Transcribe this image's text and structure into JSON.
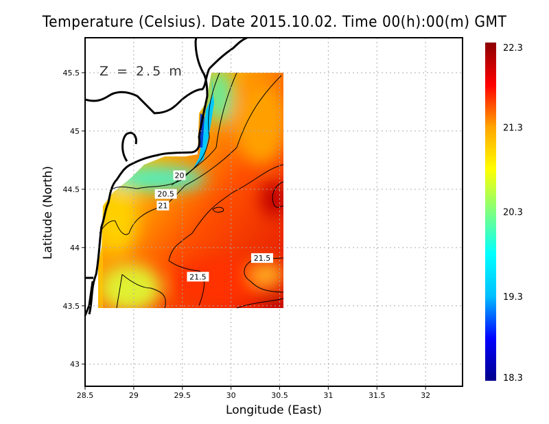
{
  "chart_data": {
    "type": "heatmap",
    "title": "Temperature (Celsius). Date 2015.10.02. Time 00(h):00(m) GMT",
    "xlabel": "Longitude (East)",
    "ylabel": "Latitude (North)",
    "annotation": "Z = 2.5 m",
    "xlim": [
      28.5,
      32.38
    ],
    "ylim": [
      42.81,
      45.8
    ],
    "xticks": [
      "28.5",
      "29",
      "29.5",
      "30",
      "30.5",
      "31",
      "31.5",
      "32"
    ],
    "xtick_values": [
      28.5,
      29,
      29.5,
      30,
      30.5,
      31,
      31.5,
      32
    ],
    "yticks": [
      "43",
      "43.5",
      "44",
      "44.5",
      "45",
      "45.5"
    ],
    "ytick_values": [
      43,
      43.5,
      44,
      44.5,
      45,
      45.5
    ],
    "grid": true,
    "data_extent": {
      "lon": [
        28.63,
        30.55
      ],
      "lat": [
        43.48,
        45.5
      ]
    },
    "colorbar": {
      "min": 18.3,
      "max": 22.3,
      "tick_labels": [
        "22.3",
        "21.3",
        "20.3",
        "19.3",
        "18.3"
      ],
      "colors": [
        "#00008b",
        "#0000ff",
        "#00bfff",
        "#00ffff",
        "#7fff7f",
        "#ffff00",
        "#ffa500",
        "#ff0000",
        "#8b0000"
      ]
    },
    "contour_labels": [
      {
        "text": "20",
        "lon": 29.47,
        "lat": 44.62
      },
      {
        "text": "20.5",
        "lon": 29.33,
        "lat": 44.46
      },
      {
        "text": "21",
        "lon": 29.3,
        "lat": 44.36
      },
      {
        "text": "21.5",
        "lon": 29.66,
        "lat": 43.75
      },
      {
        "text": "21.5",
        "lon": 30.32,
        "lat": 43.91
      }
    ]
  }
}
